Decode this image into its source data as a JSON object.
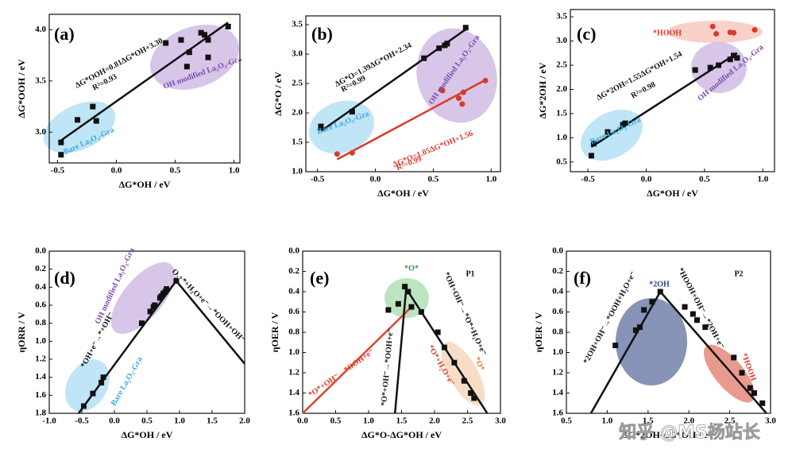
{
  "chart_data": [
    {
      "type": "scatter",
      "panel_label": "(a)",
      "xlabel": "ΔG*OH / eV",
      "ylabel": "ΔG*OOH / eV",
      "xlim": [
        -0.57,
        1.05
      ],
      "ylim": [
        2.7,
        4.15
      ],
      "xticks": [
        -0.5,
        {
          "value": 0,
          "label": "0.0"
        },
        0.5,
        {
          "value": 1,
          "label": "1.0"
        }
      ],
      "yticks": [
        {
          "value": 3,
          "label": "3.0"
        },
        3.5,
        {
          "value": 4,
          "label": "4.0"
        }
      ],
      "series": [
        {
          "color": "#111111",
          "marker": "square",
          "x": [
            -0.47,
            -0.47,
            -0.33,
            -0.2,
            -0.17,
            0.42,
            0.55,
            0.6,
            0.62,
            0.72,
            0.75,
            0.78,
            0.78,
            0.95
          ],
          "values": [
            2.78,
            2.9,
            3.12,
            3.25,
            3.11,
            3.87,
            3.9,
            3.64,
            3.78,
            3.97,
            3.95,
            3.73,
            3.9,
            4.03
          ]
        }
      ],
      "lines": [
        {
          "color": "#111111",
          "x": [
            -0.47,
            0.95
          ],
          "values": [
            2.92,
            4.07
          ]
        }
      ],
      "annotations": [
        {
          "text": "ΔG*OOH=0.81ΔG*OH+3.30",
          "color": "#111111"
        },
        {
          "text": "R²=0.93",
          "color": "#111111"
        },
        {
          "text": "Bare La₂O₃-Gra",
          "color": "#3aa7e0"
        },
        {
          "text": "OH modified La₂O₃-Gra",
          "color": "#7d4bb0"
        }
      ]
    },
    {
      "type": "scatter",
      "panel_label": "(b)",
      "xlabel": "ΔG*OH / eV",
      "ylabel": "ΔG*O / eV",
      "xlim": [
        -0.6,
        1.08
      ],
      "ylim": [
        1.0,
        3.65
      ],
      "xticks": [
        -0.5,
        {
          "value": 0,
          "label": "0.0"
        },
        0.5,
        {
          "value": 1,
          "label": "1.0"
        }
      ],
      "yticks": [
        {
          "value": 1,
          "label": "1.0"
        },
        1.5,
        {
          "value": 2,
          "label": "2.0"
        },
        2.5,
        {
          "value": 3,
          "label": "3.0"
        },
        3.5
      ],
      "series": [
        {
          "color": "#111111",
          "marker": "square",
          "x": [
            -0.47,
            -0.47,
            -0.2,
            0.42,
            0.55,
            0.6,
            0.62,
            0.78
          ],
          "values": [
            1.75,
            1.77,
            2.02,
            2.93,
            3.1,
            3.15,
            3.18,
            3.45
          ]
        },
        {
          "color": "#d93a2b",
          "marker": "circle",
          "x": [
            -0.33,
            -0.2,
            0.57,
            0.58,
            0.72,
            0.75,
            0.76,
            0.95
          ],
          "values": [
            1.3,
            1.32,
            2.4,
            2.38,
            2.25,
            2.15,
            2.35,
            2.55
          ]
        }
      ],
      "lines": [
        {
          "color": "#111111",
          "x": [
            -0.47,
            0.78
          ],
          "values": [
            1.69,
            3.42
          ]
        },
        {
          "color": "#d93a2b",
          "x": [
            -0.33,
            0.95
          ],
          "values": [
            1.21,
            2.56
          ]
        }
      ],
      "annotations": [
        {
          "text": "ΔG*O=1.39ΔG*OH+2.34",
          "color": "#111111"
        },
        {
          "text": "R²=0.99",
          "color": "#111111"
        },
        {
          "text": "ΔG*O=1.05ΔG*OH+1.56",
          "color": "#d93a2b"
        },
        {
          "text": "R²=0.99",
          "color": "#d93a2b"
        },
        {
          "text": "Bare La₂O₃-Gra",
          "color": "#3aa7e0"
        },
        {
          "text": "OH modified La₂O₃-Gra",
          "color": "#7d4bb0"
        }
      ]
    },
    {
      "type": "scatter",
      "panel_label": "(c)",
      "xlabel": "ΔG*OH / eV",
      "ylabel": "ΔG*2OH / eV",
      "xlim": [
        -0.65,
        1.1
      ],
      "ylim": [
        0.3,
        3.65
      ],
      "xticks": [
        -0.5,
        {
          "value": 0,
          "label": "0.0"
        },
        0.5,
        {
          "value": 1,
          "label": "1.0"
        }
      ],
      "yticks": [
        0.5,
        {
          "value": 1,
          "label": "1.0"
        },
        1.5,
        {
          "value": 2,
          "label": "2.0"
        },
        2.5,
        {
          "value": 3,
          "label": "3.0"
        },
        3.5
      ],
      "series": [
        {
          "color": "#111111",
          "marker": "square",
          "x": [
            -0.47,
            -0.45,
            -0.33,
            -0.2,
            -0.18,
            0.42,
            0.55,
            0.62,
            0.72,
            0.75,
            0.78
          ],
          "values": [
            0.63,
            0.88,
            1.12,
            1.27,
            1.3,
            2.4,
            2.45,
            2.5,
            2.62,
            2.7,
            2.65
          ]
        },
        {
          "color": "#d93a2b",
          "marker": "circle",
          "x": [
            0.57,
            0.6,
            0.72,
            0.75,
            0.93
          ],
          "values": [
            3.3,
            3.15,
            3.18,
            3.17,
            3.23
          ]
        }
      ],
      "lines": [
        {
          "color": "#111111",
          "x": [
            -0.47,
            0.78
          ],
          "values": [
            0.81,
            2.75
          ]
        }
      ],
      "annotations": [
        {
          "text": "*HOOH",
          "color": "#d93a2b"
        },
        {
          "text": "ΔG*2OH=1.55ΔG*OH+1.54",
          "color": "#111111"
        },
        {
          "text": "R²=0.98",
          "color": "#111111"
        },
        {
          "text": "Bare La₂O₃-Gra",
          "color": "#3aa7e0"
        },
        {
          "text": "OH modified La₂O₃-Gra",
          "color": "#7d4bb0"
        }
      ]
    },
    {
      "type": "scatter",
      "panel_label": "(d)",
      "xlabel": "ΔG*OH / eV",
      "ylabel": "ηORR / V",
      "xlim": [
        -1,
        2
      ],
      "ylim": [
        0,
        1.8
      ],
      "y_inverted": true,
      "xticks": [
        {
          "value": -1,
          "label": "-1.0"
        },
        -0.5,
        {
          "value": 0,
          "label": "0.0"
        },
        0.5,
        {
          "value": 1,
          "label": "1.0"
        },
        1.5,
        {
          "value": 2,
          "label": "2.0"
        }
      ],
      "yticks": [
        {
          "value": 0,
          "label": "0.0"
        },
        0.2,
        0.4,
        0.6,
        0.8,
        {
          "value": 1,
          "label": "1.0"
        },
        1.2,
        1.4,
        1.6,
        1.8
      ],
      "series": [
        {
          "color": "#111111",
          "marker": "square",
          "x": [
            -0.47,
            -0.33,
            -0.2,
            -0.17,
            0.42,
            0.55,
            0.6,
            0.62,
            0.7,
            0.72,
            0.75,
            0.78,
            0.8,
            0.95
          ],
          "values": [
            1.72,
            1.58,
            1.46,
            1.4,
            0.8,
            0.67,
            0.62,
            0.6,
            0.52,
            0.5,
            0.47,
            0.45,
            0.42,
            0.33
          ]
        }
      ],
      "lines": [
        {
          "color": "#111111",
          "x": [
            -0.55,
            0.95,
            2.0
          ],
          "values": [
            1.8,
            0.33,
            1.25
          ]
        }
      ],
      "annotations": [
        {
          "text": "OH modified La₂O₃-Gra",
          "color": "#7d4bb0"
        },
        {
          "text": "*OH+e⁻→*+OH⁻",
          "color": "#111111"
        },
        {
          "text": "O₂+*+H₂O+e⁻→*OOH+OH⁻",
          "color": "#111111"
        },
        {
          "text": "Bare La₂O₃-Gra",
          "color": "#3aa7e0"
        }
      ]
    },
    {
      "type": "scatter",
      "panel_label": "(e)",
      "xlabel": "ΔG*O-ΔG*OH / eV",
      "ylabel": "ηOER / V",
      "xlim": [
        0,
        3
      ],
      "ylim": [
        0,
        1.6
      ],
      "y_inverted": true,
      "xticks": [
        {
          "value": 0,
          "label": "0.0"
        },
        0.5,
        {
          "value": 1,
          "label": "1.0"
        },
        1.5,
        {
          "value": 2,
          "label": "2.0"
        },
        2.5,
        {
          "value": 3,
          "label": "3.0"
        }
      ],
      "yticks": [
        {
          "value": 0,
          "label": "0.0"
        },
        0.2,
        0.4,
        0.6,
        0.8,
        {
          "value": 1,
          "label": "1.0"
        },
        1.2,
        1.4,
        1.6
      ],
      "series": [
        {
          "color": "#111111",
          "marker": "square",
          "x": [
            1.3,
            1.45,
            1.55,
            1.6,
            1.65,
            1.8,
            2.05,
            2.15,
            2.3,
            2.45,
            2.55,
            2.6
          ],
          "values": [
            0.58,
            0.52,
            0.35,
            0.4,
            0.55,
            0.6,
            0.8,
            0.95,
            1.1,
            1.28,
            1.4,
            1.45
          ]
        }
      ],
      "lines": [
        {
          "color": "#e0452b",
          "x": [
            0,
            1.62
          ],
          "values": [
            1.6,
            0.57
          ]
        },
        {
          "color": "#111111",
          "x": [
            1.4,
            1.57,
            2.8
          ],
          "values": [
            1.6,
            0.37,
            1.6
          ]
        }
      ],
      "annotations": [
        {
          "text": "P1",
          "color": "#111111"
        },
        {
          "text": "*O*",
          "color": "#2e9e4a"
        },
        {
          "text": "*O*+OH⁻→*OOH+e⁻",
          "color": "#d93a2b"
        },
        {
          "text": "*O*+OH⁻→*OOH+e⁻",
          "color": "#111111"
        },
        {
          "text": "*OH+OH⁻→*O*+H₂O+e⁻",
          "color": "#111111"
        },
        {
          "text": "*O*+H₂O+e⁻",
          "color": "#d93a2b"
        },
        {
          "text": "*O*",
          "color": "#e07a2b"
        }
      ]
    },
    {
      "type": "scatter",
      "panel_label": "(f)",
      "xlabel": "ΔG*2OH-ΔG*OH / eV",
      "ylabel": "ηOER / V",
      "xlim": [
        0.5,
        3
      ],
      "ylim": [
        0,
        1.6
      ],
      "y_inverted": true,
      "xticks": [
        0.5,
        {
          "value": 1,
          "label": "1.0"
        },
        1.5,
        {
          "value": 2,
          "label": "2.0"
        },
        2.5,
        {
          "value": 3,
          "label": "3.0"
        }
      ],
      "yticks": [
        {
          "value": 0,
          "label": "0.0"
        },
        0.2,
        0.4,
        0.6,
        0.8,
        {
          "value": 1,
          "label": "1.0"
        },
        1.2,
        1.4,
        1.6
      ],
      "series": [
        {
          "color": "#111111",
          "marker": "square",
          "x": [
            1.1,
            1.35,
            1.4,
            1.45,
            1.55,
            1.65,
            1.95,
            2.05,
            2.1,
            2.2,
            2.55,
            2.65,
            2.75,
            2.8,
            2.9
          ],
          "values": [
            0.93,
            0.78,
            0.75,
            0.58,
            0.5,
            0.4,
            0.55,
            0.62,
            0.68,
            0.75,
            1.05,
            1.2,
            1.35,
            1.4,
            1.5
          ]
        }
      ],
      "lines": [
        {
          "color": "#111111",
          "x": [
            0.8,
            1.65,
            2.95
          ],
          "values": [
            1.6,
            0.4,
            1.6
          ]
        }
      ],
      "annotations": [
        {
          "text": "P2",
          "color": "#111111"
        },
        {
          "text": "*2OH",
          "color": "#2b3f8a"
        },
        {
          "text": "*2OH+OH⁻→*OOH+H₂O+e⁻",
          "color": "#111111"
        },
        {
          "text": "*HOOH+OH⁻→*2OH+e⁻",
          "color": "#111111"
        },
        {
          "text": "*HOOH",
          "color": "#d93a2b"
        }
      ]
    }
  ],
  "watermark": "知乎 @MS杨站长"
}
